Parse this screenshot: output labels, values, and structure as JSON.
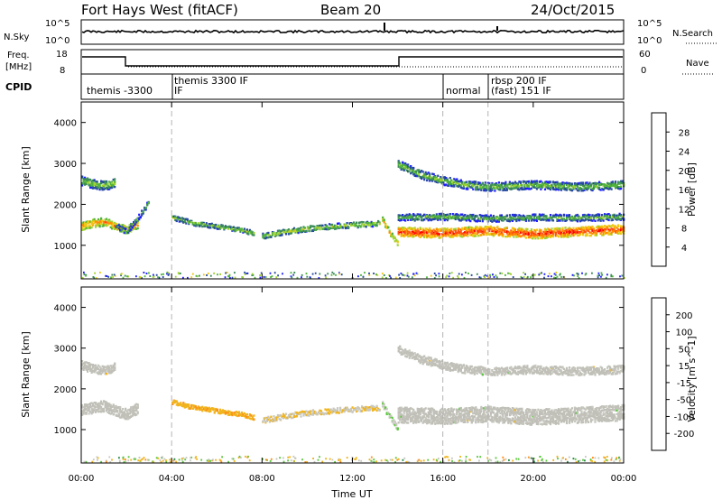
{
  "header": {
    "station": "Fort Hays West (fitACF)",
    "beam": "Beam 20",
    "date": "24/Oct/2015"
  },
  "panels": {
    "noise": {
      "left_label": "N.Sky",
      "right_label": "N.Search",
      "left_ticks": [
        "10^5",
        "10^0"
      ],
      "right_ticks": [
        "10^5",
        "10^0"
      ]
    },
    "freq": {
      "left_label_1": "Freq.",
      "left_label_2": "[MHz]",
      "right_label": "Nave",
      "left_ticks": [
        "18",
        "8"
      ],
      "right_ticks": [
        "60",
        "0"
      ]
    },
    "cpid": {
      "label": "CPID",
      "segments": [
        "themis -3300",
        "IF",
        "themis 3300 IF",
        "normal",
        "rbsp 200 IF",
        "(fast) 151 IF"
      ]
    }
  },
  "colors": {
    "power_scale": [
      "#1e1eff",
      "#284aa0",
      "#3c8c5a",
      "#50b43c",
      "#a0d232",
      "#f0c814",
      "#ff8c00",
      "#ff5014",
      "#ff0000"
    ],
    "velocity_scale": [
      "#1e32c8",
      "#2d6eaa",
      "#288c46",
      "#5ac83c",
      "#c8c8c0",
      "#f0b41e",
      "#ff8c14",
      "#ff5a14",
      "#ff1e14"
    ],
    "ground_scatter": "#c0c0b8"
  },
  "chart_data": [
    {
      "type": "heatmap",
      "title": "Power",
      "xlabel": "Time UT",
      "ylabel": "Slant Range [km]",
      "x_ticks": [
        "00:00",
        "04:00",
        "08:00",
        "12:00",
        "16:00",
        "20:00",
        "00:00"
      ],
      "xlim_hours": [
        0,
        24
      ],
      "y_ticks": [
        1000,
        2000,
        3000,
        4000
      ],
      "ylim_km": [
        180,
        4500
      ],
      "colorbar_label": "Power [dB]",
      "colorbar_ticks": [
        4,
        8,
        12,
        16,
        20,
        24,
        28
      ],
      "colorbar_range": [
        0,
        32
      ],
      "cpid_boundaries_hours": [
        4.0,
        16.0,
        18.0
      ],
      "bands": [
        {
          "t": [
            0.0,
            0.5,
            1.0,
            1.5,
            2.0,
            2.5
          ],
          "center_km": [
            1500,
            1560,
            1600,
            1480,
            1400,
            1550
          ],
          "width_km": 200,
          "power_db": 24
        },
        {
          "t": [
            0.0,
            0.5,
            1.0,
            1.5
          ],
          "center_km": [
            2600,
            2520,
            2480,
            2550
          ],
          "width_km": 220,
          "power_db": 16
        },
        {
          "t": [
            1.5,
            2.0,
            2.5,
            3.0
          ],
          "center_km": [
            1500,
            1350,
            1700,
            2100
          ],
          "width_km": 120,
          "power_db": 13
        },
        {
          "t": [
            4.0,
            5.0,
            6.0,
            7.0,
            7.6
          ],
          "center_km": [
            1700,
            1560,
            1480,
            1400,
            1320
          ],
          "width_km": 110,
          "power_db": 16
        },
        {
          "t": [
            8.0,
            9.0,
            10.0,
            11.0,
            12.0,
            13.2
          ],
          "center_km": [
            1250,
            1350,
            1430,
            1480,
            1520,
            1560
          ],
          "width_km": 130,
          "power_db": 17
        },
        {
          "t": [
            13.3,
            13.6,
            14.0
          ],
          "center_km": [
            1650,
            1350,
            1050
          ],
          "width_km": 130,
          "power_db": 22
        },
        {
          "t": [
            14.0,
            16.0,
            18.0,
            20.0,
            22.0,
            24.0
          ],
          "center_km": [
            1350,
            1320,
            1380,
            1300,
            1360,
            1420
          ],
          "width_km": 230,
          "power_db": 29
        },
        {
          "t": [
            14.0,
            16.0,
            18.0,
            20.0,
            22.0,
            24.0
          ],
          "center_km": [
            1700,
            1720,
            1680,
            1700,
            1690,
            1720
          ],
          "width_km": 160,
          "power_db": 14
        },
        {
          "t": [
            14.0,
            15.0,
            16.0,
            17.0,
            18.0,
            20.0,
            22.0,
            24.0
          ],
          "center_km": [
            3000,
            2750,
            2600,
            2500,
            2450,
            2500,
            2450,
            2500
          ],
          "width_km": 200,
          "power_db": 15
        }
      ]
    },
    {
      "type": "heatmap",
      "title": "Velocity",
      "xlabel": "Time UT",
      "ylabel": "Slant Range [km]",
      "x_ticks": [
        "00:00",
        "04:00",
        "08:00",
        "12:00",
        "16:00",
        "20:00",
        "00:00"
      ],
      "xlim_hours": [
        0,
        24
      ],
      "y_ticks": [
        1000,
        2000,
        3000,
        4000
      ],
      "ylim_km": [
        180,
        4500
      ],
      "colorbar_label": "Velocity [m s^-1]",
      "colorbar_ticks": [
        200,
        100,
        50,
        15,
        -15,
        -50,
        -100,
        -200
      ],
      "colorbar_range": [
        -250,
        250
      ],
      "cpid_boundaries_hours": [
        4.0,
        16.0,
        18.0
      ],
      "bands": [
        {
          "t": [
            0.0,
            0.5,
            1.0,
            1.5,
            2.0,
            2.5
          ],
          "center_km": [
            1500,
            1560,
            1600,
            1480,
            1400,
            1550
          ],
          "width_km": 260,
          "velocity": 0
        },
        {
          "t": [
            0.0,
            0.5,
            1.0,
            1.5
          ],
          "center_km": [
            2600,
            2520,
            2480,
            2550
          ],
          "width_km": 220,
          "velocity": 0
        },
        {
          "t": [
            4.0,
            5.0,
            6.0,
            7.0,
            7.6
          ],
          "center_km": [
            1700,
            1560,
            1480,
            1400,
            1320
          ],
          "width_km": 110,
          "velocity": -60
        },
        {
          "t": [
            8.0,
            9.0,
            10.0,
            11.0,
            12.0,
            13.2
          ],
          "center_km": [
            1250,
            1350,
            1430,
            1480,
            1520,
            1560
          ],
          "width_km": 130,
          "velocity": -20
        },
        {
          "t": [
            13.3,
            13.6,
            14.0
          ],
          "center_km": [
            1650,
            1350,
            1050
          ],
          "width_km": 130,
          "velocity": 20
        },
        {
          "t": [
            14.0,
            16.0,
            18.0,
            20.0,
            22.0,
            24.0
          ],
          "center_km": [
            1380,
            1350,
            1400,
            1330,
            1380,
            1440
          ],
          "width_km": 380,
          "velocity": 0
        },
        {
          "t": [
            14.0,
            15.0,
            16.0,
            17.0,
            18.0,
            20.0,
            22.0,
            24.0
          ],
          "center_km": [
            3000,
            2750,
            2600,
            2500,
            2450,
            2500,
            2450,
            2500
          ],
          "width_km": 200,
          "velocity": 0
        }
      ]
    }
  ]
}
